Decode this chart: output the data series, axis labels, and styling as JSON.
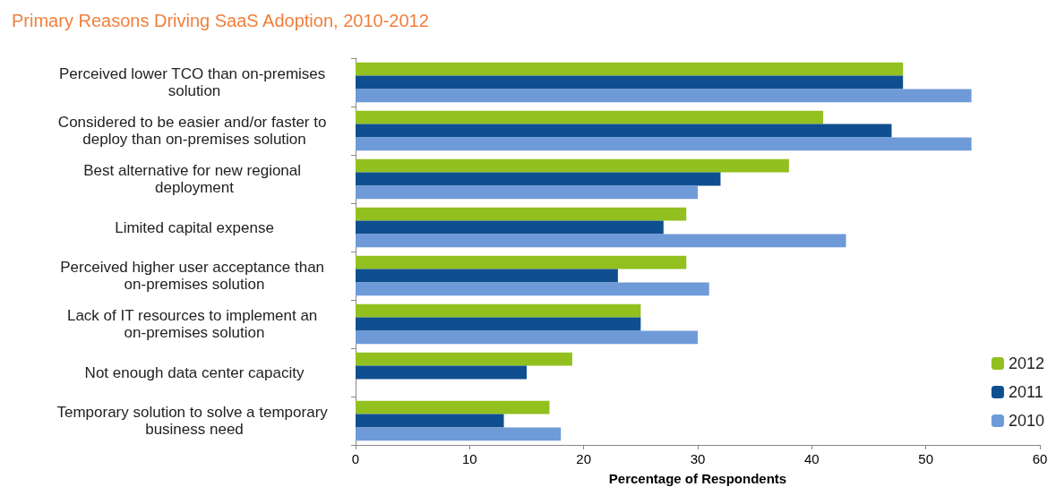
{
  "chart_data": {
    "type": "bar",
    "orientation": "horizontal",
    "title": "Primary Reasons Driving SaaS Adoption, 2010-2012",
    "xlabel": "Percentage of Respondents",
    "categories": [
      "Perceived lower TCO than on-premises solution",
      "Considered to be easier and/or faster to deploy than on-premises solution",
      "Best alternative for new regional deployment",
      "Limited capital expense",
      "Perceived higher user acceptance than on-premises solution",
      "Lack of IT resources to implement an on-premises solution",
      "Not enough data center capacity",
      "Temporary solution to solve a temporary business need"
    ],
    "series": [
      {
        "name": "2012",
        "color": "#92c01f",
        "values": [
          48,
          41,
          38,
          29,
          29,
          25,
          19,
          17
        ]
      },
      {
        "name": "2011",
        "color": "#0f4f8f",
        "values": [
          48,
          47,
          32,
          27,
          23,
          25,
          15,
          13
        ]
      },
      {
        "name": "2010",
        "color": "#6f9ad8",
        "values": [
          54,
          54,
          30,
          43,
          31,
          30,
          null,
          18
        ]
      }
    ],
    "xlim": [
      0,
      60
    ],
    "xticks": [
      0,
      10,
      20,
      30,
      40,
      50,
      60
    ],
    "grid": false,
    "legend": "bottom right"
  }
}
